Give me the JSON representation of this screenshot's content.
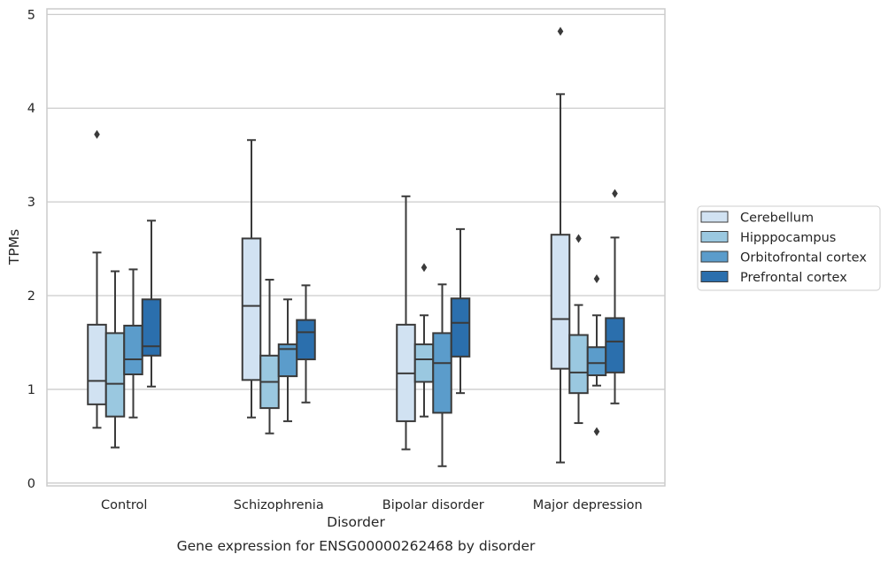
{
  "chart_data": {
    "type": "box",
    "caption": "Gene expression for ENSG00000262468 by disorder",
    "xlabel": "Disorder",
    "ylabel": "TPMs",
    "ylim": [
      -0.03,
      5.06
    ],
    "yticks": [
      0,
      1,
      2,
      3,
      4,
      5
    ],
    "grid": true,
    "legend_position": "right",
    "categories": [
      "Control",
      "Schizophrenia",
      "Bipolar disorder",
      "Major depression"
    ],
    "series": [
      {
        "name": "Cerebellum",
        "color": "#d1e2f2",
        "boxes": [
          {
            "whislo": 0.59,
            "q1": 0.84,
            "med": 1.09,
            "q3": 1.69,
            "whishi": 2.46,
            "fliers": [
              3.72
            ]
          },
          {
            "whislo": 0.7,
            "q1": 1.1,
            "med": 1.89,
            "q3": 2.61,
            "whishi": 3.66,
            "fliers": []
          },
          {
            "whislo": 0.36,
            "q1": 0.66,
            "med": 1.17,
            "q3": 1.69,
            "whishi": 3.06,
            "fliers": []
          },
          {
            "whislo": 0.22,
            "q1": 1.22,
            "med": 1.75,
            "q3": 2.65,
            "whishi": 4.15,
            "fliers": [
              4.82
            ]
          }
        ]
      },
      {
        "name": "Hipppocampus",
        "color": "#9ac8e0",
        "boxes": [
          {
            "whislo": 0.38,
            "q1": 0.71,
            "med": 1.06,
            "q3": 1.6,
            "whishi": 2.26,
            "fliers": []
          },
          {
            "whislo": 0.53,
            "q1": 0.8,
            "med": 1.08,
            "q3": 1.36,
            "whishi": 2.17,
            "fliers": []
          },
          {
            "whislo": 0.71,
            "q1": 1.08,
            "med": 1.32,
            "q3": 1.48,
            "whishi": 1.79,
            "fliers": [
              2.3
            ]
          },
          {
            "whislo": 0.64,
            "q1": 0.96,
            "med": 1.18,
            "q3": 1.58,
            "whishi": 1.9,
            "fliers": [
              2.61
            ]
          }
        ]
      },
      {
        "name": "Orbitofrontal cortex",
        "color": "#5b9ccb",
        "boxes": [
          {
            "whislo": 0.7,
            "q1": 1.16,
            "med": 1.32,
            "q3": 1.68,
            "whishi": 2.28,
            "fliers": []
          },
          {
            "whislo": 0.66,
            "q1": 1.14,
            "med": 1.43,
            "q3": 1.48,
            "whishi": 1.96,
            "fliers": []
          },
          {
            "whislo": 0.18,
            "q1": 0.75,
            "med": 1.28,
            "q3": 1.6,
            "whishi": 2.12,
            "fliers": []
          },
          {
            "whislo": 1.04,
            "q1": 1.15,
            "med": 1.28,
            "q3": 1.45,
            "whishi": 1.79,
            "fliers": [
              2.18,
              0.55
            ]
          }
        ]
      },
      {
        "name": "Prefrontal cortex",
        "color": "#2b6fad",
        "boxes": [
          {
            "whislo": 1.03,
            "q1": 1.36,
            "med": 1.46,
            "q3": 1.96,
            "whishi": 2.8,
            "fliers": []
          },
          {
            "whislo": 0.86,
            "q1": 1.32,
            "med": 1.61,
            "q3": 1.74,
            "whishi": 2.11,
            "fliers": []
          },
          {
            "whislo": 0.96,
            "q1": 1.35,
            "med": 1.71,
            "q3": 1.97,
            "whishi": 2.71,
            "fliers": []
          },
          {
            "whislo": 0.85,
            "q1": 1.18,
            "med": 1.51,
            "q3": 1.76,
            "whishi": 2.62,
            "fliers": [
              3.09
            ]
          }
        ]
      }
    ]
  }
}
